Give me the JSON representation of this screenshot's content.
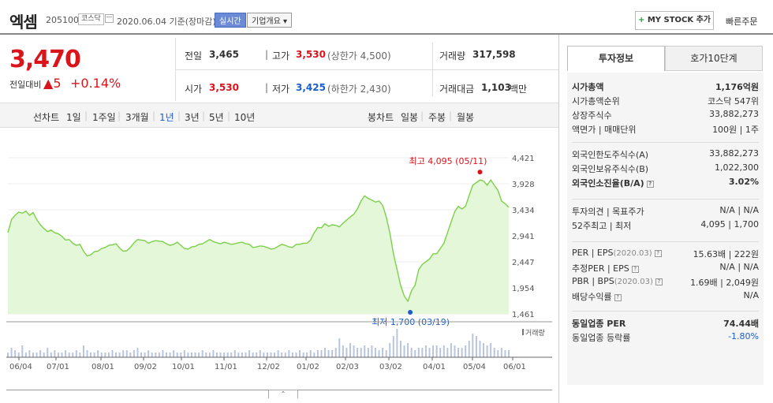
{
  "header": {
    "name": "엑셈",
    "code": "205100",
    "market": "코스닥",
    "date": "2020.06.04 기준(장마감)",
    "realtime": "실시간",
    "overview": "기업개요 ▾",
    "mystock_plus": "+",
    "mystock": "MY STOCK 추가",
    "quick_order": "빠른주문"
  },
  "price": {
    "current": "3,470",
    "change_label": "전일대비",
    "change_arrow": "▲",
    "change_amount": "5",
    "change_pct": "+0.14%"
  },
  "quote": {
    "prev_label": "전일",
    "prev": "3,465",
    "high_label": "고가",
    "high": "3,530",
    "upper_limit": "(상한가 4,500)",
    "volume_label": "거래량",
    "volume": "317,598",
    "open_label": "시가",
    "open": "3,530",
    "low_label": "저가",
    "low": "3,425",
    "lower_limit": "(하한가 2,430)",
    "amount_label": "거래대금",
    "amount": "1,103",
    "amount_unit": "백만"
  },
  "periods": {
    "line_label": "선차트",
    "items": [
      "1일",
      "1주일",
      "3개월",
      "1년",
      "3년",
      "5년",
      "10년"
    ],
    "selected": "1년",
    "candle_label": "봉차트",
    "candle_items": [
      "일봉",
      "주봉",
      "월봉"
    ]
  },
  "chart_data": {
    "type": "area",
    "y_ticks": [
      "4,421",
      "3,928",
      "3,434",
      "2,941",
      "2,447",
      "1,954",
      "1,461"
    ],
    "ylim": [
      1461,
      4421
    ],
    "x_ticks": [
      "06/04",
      "07/01",
      "08/01",
      "09/02",
      "10/01",
      "11/01",
      "12/02",
      "01/02",
      "02/03",
      "03/02",
      "04/01",
      "05/04",
      "06/01"
    ],
    "max_label": "최고 4,095 (05/11)",
    "min_label": "최저 1,700 (03/19)",
    "volume_label": "거래량",
    "prices": [
      3000,
      3250,
      3330,
      3390,
      3370,
      3410,
      3330,
      3380,
      3250,
      3150,
      3080,
      3020,
      3050,
      3000,
      2980,
      2930,
      2860,
      2870,
      2800,
      2760,
      2780,
      2650,
      2560,
      2580,
      2640,
      2650,
      2700,
      2720,
      2760,
      2770,
      2790,
      2710,
      2650,
      2660,
      2720,
      2810,
      2870,
      2860,
      2850,
      2800,
      2830,
      2850,
      2840,
      2830,
      2790,
      2760,
      2780,
      2820,
      2760,
      2700,
      2690,
      2730,
      2740,
      2780,
      2790,
      2830,
      2870,
      2830,
      2810,
      2790,
      2820,
      2800,
      2780,
      2790,
      2810,
      2820,
      2790,
      2780,
      2720,
      2730,
      2750,
      2740,
      2720,
      2690,
      2700,
      2740,
      2780,
      2760,
      2730,
      2720,
      2780,
      2780,
      2800,
      2800,
      2860,
      3000,
      3100,
      3090,
      3170,
      3120,
      3150,
      3140,
      3110,
      3180,
      3240,
      3300,
      3350,
      3450,
      3600,
      3700,
      3650,
      3620,
      3580,
      3600,
      3520,
      3300,
      3000,
      2600,
      2300,
      2000,
      1800,
      1700,
      1900,
      2000,
      2300,
      2400,
      2450,
      2500,
      2600,
      2600,
      2700,
      2800,
      3000,
      3200,
      3400,
      3500,
      3450,
      3500,
      3700,
      3900,
      3950,
      4000,
      3980,
      3900,
      4000,
      3900,
      3800,
      3600,
      3550,
      3480
    ],
    "volumes": [
      2,
      4,
      3,
      2,
      5,
      2,
      3,
      2,
      2,
      3,
      2,
      4,
      2,
      3,
      2,
      2,
      3,
      2,
      2,
      3,
      2,
      5,
      3,
      2,
      2,
      3,
      2,
      2,
      2,
      3,
      2,
      2,
      3,
      3,
      2,
      3,
      4,
      2,
      2,
      3,
      2,
      2,
      2,
      3,
      2,
      2,
      3,
      2,
      2,
      3,
      2,
      2,
      2,
      2,
      3,
      2,
      2,
      3,
      2,
      2,
      2,
      2,
      2,
      3,
      2,
      2,
      2,
      3,
      2,
      2,
      3,
      2,
      2,
      2,
      2,
      3,
      2,
      2,
      3,
      2,
      2,
      3,
      2,
      2,
      3,
      2,
      3,
      3,
      4,
      3,
      3,
      4,
      8,
      5,
      4,
      6,
      5,
      4,
      4,
      5,
      4,
      5,
      4,
      3,
      4,
      3,
      6,
      9,
      12,
      7,
      5,
      6,
      4,
      3,
      4,
      4,
      5,
      4,
      5,
      5,
      4,
      5,
      4,
      6,
      5,
      4,
      4,
      5,
      7,
      10,
      9,
      7,
      6,
      5,
      6,
      4,
      3,
      4,
      3,
      3
    ]
  },
  "right": {
    "tab_active": "투자정보",
    "tab_inactive": "호가10단계",
    "g1": [
      {
        "k": "시가총액",
        "v": "1,176억원",
        "b": true
      },
      {
        "k": "시가총액순위",
        "v": "코스닥 547위"
      },
      {
        "k": "상장주식수",
        "v": "33,882,273"
      },
      {
        "k": "액면가 | 매매단위",
        "v": "100원 | 1주"
      }
    ],
    "g2": [
      {
        "k": "외국인한도주식수(A)",
        "v": "33,882,273"
      },
      {
        "k": "외국인보유주식수(B)",
        "v": "1,022,300"
      },
      {
        "k": "외국인소진율(B/A)",
        "v": "3.02%",
        "b": true
      }
    ],
    "g3": [
      {
        "k": "투자의견 | 목표주가",
        "v": "N/A | N/A"
      },
      {
        "k": "52주최고 | 최저",
        "v": "4,095 | 1,700"
      }
    ],
    "g4": [
      {
        "k": "PER | EPS",
        "ks": "(2020.03)",
        "v": "15.63배 | 222원"
      },
      {
        "k": "추정PER | EPS",
        "v": "N/A | N/A"
      },
      {
        "k": "PBR | BPS",
        "ks": "(2020.03)",
        "v": "1.69배 | 2,049원"
      },
      {
        "k": "배당수익률",
        "v": "N/A"
      }
    ],
    "g5": [
      {
        "k": "동일업종 PER",
        "v": "74.44배",
        "b": true
      },
      {
        "k": "동일업종 등락률",
        "v": "-1.80%",
        "blue": true
      }
    ],
    "qmark": "?"
  },
  "toggle": "⌃"
}
